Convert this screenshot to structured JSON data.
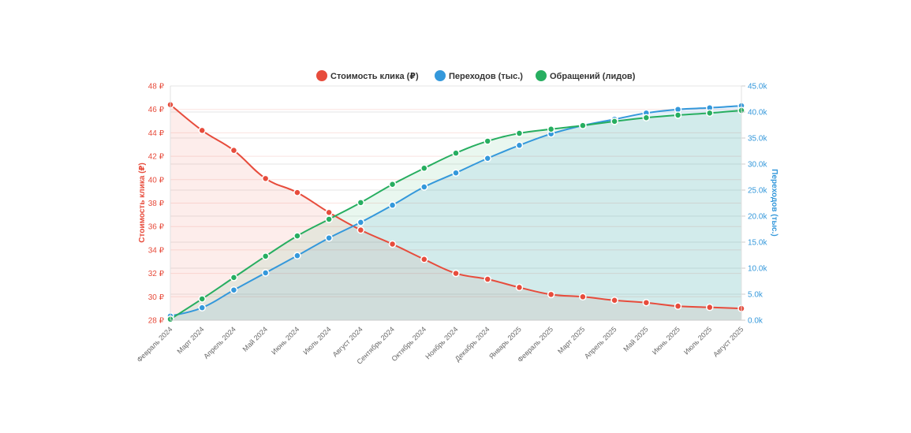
{
  "chart_data": {
    "type": "line",
    "title": "",
    "categories": [
      "Февраль 2024",
      "Март 2024",
      "Апрель 2024",
      "Май 2024",
      "Июнь 2024",
      "Июль 2024",
      "Август 2024",
      "Сентябрь 2024",
      "Октябрь 2024",
      "Ноябрь 2024",
      "Декабрь 2024",
      "Январь 2025",
      "Февраль 2025",
      "Март 2025",
      "Апрель 2025",
      "Май 2025",
      "Июнь 2025",
      "Июль 2025",
      "Август 2025"
    ],
    "legend_position": "top-center",
    "series": [
      {
        "name": "Стоимость клика (₽)",
        "axis": "left",
        "color": "#e74c3c",
        "fill": "rgba(231,76,60,0.1)",
        "values": [
          46.4,
          44.2,
          42.5,
          40.1,
          38.9,
          37.2,
          35.7,
          34.5,
          33.2,
          32.0,
          31.5,
          30.8,
          30.2,
          30.0,
          29.7,
          29.5,
          29.2,
          29.1,
          29.0
        ]
      },
      {
        "name": "Переходов (тыс.)",
        "axis": "right",
        "color": "#3498db",
        "fill": "rgba(52,152,219,0.12)",
        "values": [
          0.8,
          2.4,
          5.8,
          9.1,
          12.4,
          15.8,
          18.8,
          22.1,
          25.6,
          28.3,
          31.1,
          33.6,
          35.8,
          37.4,
          38.6,
          39.8,
          40.5,
          40.8,
          41.2
        ]
      },
      {
        "name": "Обращений (лидов)",
        "axis": "right",
        "color": "#27ae60",
        "fill": "rgba(39,174,96,0.1)",
        "values": [
          0.2,
          4.1,
          8.2,
          12.3,
          16.2,
          19.4,
          22.6,
          26.1,
          29.2,
          32.1,
          34.4,
          35.9,
          36.7,
          37.4,
          38.2,
          38.9,
          39.4,
          39.8,
          40.3
        ]
      }
    ],
    "y_left": {
      "label": "Стоимость клика (₽)",
      "range": [
        28,
        48
      ],
      "ticks": [
        "28 ₽",
        "30 ₽",
        "32 ₽",
        "34 ₽",
        "36 ₽",
        "38 ₽",
        "40 ₽",
        "42 ₽",
        "44 ₽",
        "46 ₽",
        "48 ₽"
      ],
      "color": "#e74c3c"
    },
    "y_right": {
      "label": "Переходов (тыс.)",
      "range": [
        0,
        45
      ],
      "ticks": [
        "0.0k",
        "5.0k",
        "10.0k",
        "15.0k",
        "20.0k",
        "25.0k",
        "30.0k",
        "35.0k",
        "40.0k",
        "45.0k"
      ],
      "color": "#3498db"
    },
    "grid": true
  }
}
